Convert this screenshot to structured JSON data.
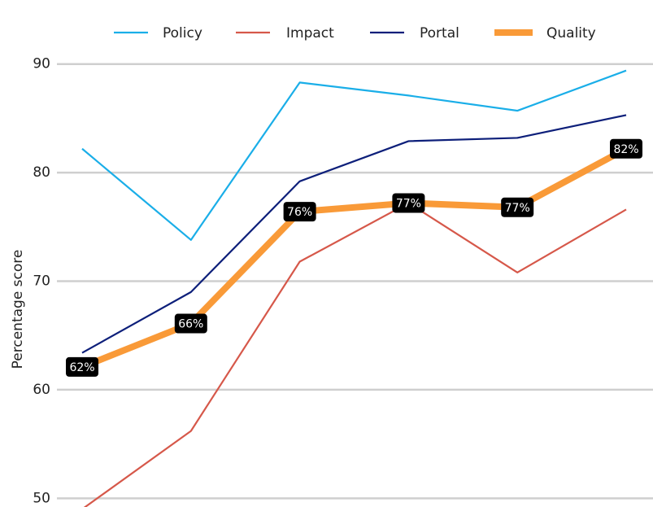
{
  "chart_data": {
    "type": "line",
    "categories": [
      null,
      null,
      null,
      null,
      null,
      null
    ],
    "ylabel": "Percentage score",
    "ylim": [
      49.2,
      95.9
    ],
    "yticks": [
      50,
      60,
      70,
      80,
      90
    ],
    "grid": true,
    "legend": "top",
    "series": [
      {
        "name": "Policy",
        "color": "#1aaee8",
        "values": [
          82.2,
          73.8,
          88.3,
          87.1,
          85.7,
          89.4
        ]
      },
      {
        "name": "Impact",
        "color": "#d6584a",
        "values": [
          49.0,
          56.2,
          71.8,
          77.2,
          70.8,
          76.6
        ]
      },
      {
        "name": "Portal",
        "color": "#0d1f7a",
        "values": [
          63.4,
          69.0,
          79.2,
          82.9,
          83.2,
          85.3
        ]
      },
      {
        "name": "Quality",
        "color": "#f99a38",
        "values": [
          62.1,
          66.1,
          76.4,
          77.2,
          76.8,
          82.2
        ],
        "value_labels": [
          "62%",
          "66%",
          "76%",
          "77%",
          "77%",
          "82%"
        ]
      }
    ]
  }
}
